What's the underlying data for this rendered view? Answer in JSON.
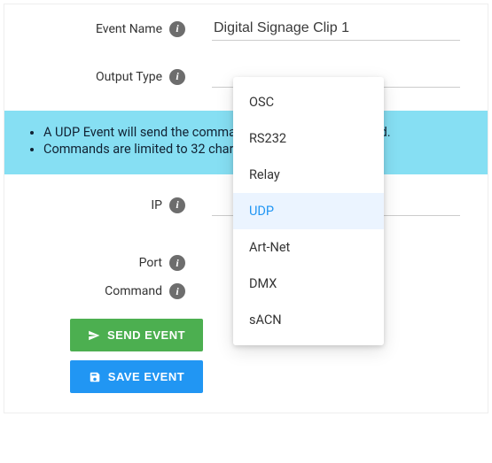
{
  "fields": {
    "eventName": {
      "label": "Event Name",
      "value": "Digital Signage Clip 1"
    },
    "outputType": {
      "label": "Output Type"
    },
    "ip": {
      "label": "IP"
    },
    "port": {
      "label": "Port"
    },
    "command": {
      "label": "Command"
    }
  },
  "help": {
    "line1": "A UDP Event will send the command via UDP when activated.",
    "line2": "Commands are limited to 32 characters."
  },
  "dropdown": {
    "options": [
      "OSC",
      "RS232",
      "Relay",
      "UDP",
      "Art-Net",
      "DMX",
      "sACN"
    ],
    "selected": "UDP"
  },
  "buttons": {
    "send": "SEND EVENT",
    "save": "SAVE EVENT"
  },
  "colors": {
    "banner_bg": "#86dff3",
    "send_btn": "#4caf50",
    "save_btn": "#2196f3",
    "selected_bg": "#ebf4ff",
    "selected_fg": "#2196f3",
    "info_bg": "#6d6d6d"
  }
}
